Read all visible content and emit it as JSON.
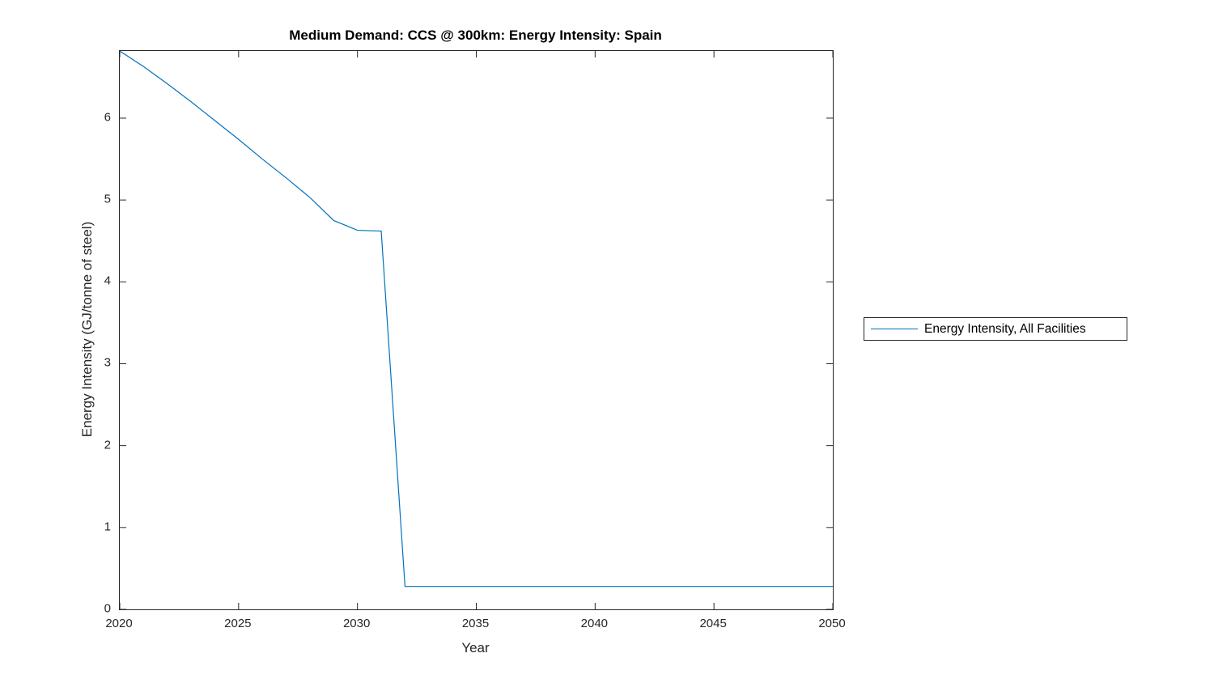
{
  "figure": {
    "title": "Medium Demand: CCS @ 300km: Energy Intensity: Spain",
    "xlabel": "Year",
    "ylabel": "Energy Intensity (GJ/tonne of steel)"
  },
  "legend": {
    "entries": [
      {
        "label": "Energy Intensity, All Facilities",
        "color": "#0072BD"
      }
    ]
  },
  "colors": {
    "line": "#0072BD",
    "axis": "#262626",
    "tick_text": "#262626",
    "title_text": "#000000",
    "background": "#ffffff"
  },
  "chart_data": {
    "type": "line",
    "title": "Medium Demand: CCS @ 300km: Energy Intensity: Spain",
    "xlabel": "Year",
    "ylabel": "Energy Intensity (GJ/tonne of steel)",
    "x": [
      2020,
      2021,
      2022,
      2023,
      2024,
      2025,
      2026,
      2027,
      2028,
      2029,
      2030,
      2031,
      2032,
      2033,
      2034,
      2035,
      2036,
      2037,
      2038,
      2039,
      2040,
      2041,
      2042,
      2043,
      2044,
      2045,
      2046,
      2047,
      2048,
      2049,
      2050
    ],
    "series": [
      {
        "name": "Energy Intensity, All Facilities",
        "color": "#0072BD",
        "values": [
          6.82,
          6.63,
          6.42,
          6.2,
          5.97,
          5.74,
          5.5,
          5.27,
          5.03,
          4.75,
          4.63,
          4.62,
          0.28,
          0.28,
          0.28,
          0.28,
          0.28,
          0.28,
          0.28,
          0.28,
          0.28,
          0.28,
          0.28,
          0.28,
          0.28,
          0.28,
          0.28,
          0.28,
          0.28,
          0.28,
          0.28
        ]
      }
    ],
    "xlim": [
      2020,
      2050
    ],
    "ylim": [
      0,
      6.82
    ],
    "xticks": [
      2020,
      2025,
      2030,
      2035,
      2040,
      2045,
      2050
    ],
    "xtick_labels": [
      "2020",
      "2025",
      "2030",
      "2035",
      "2040",
      "2045",
      "2050"
    ],
    "yticks": [
      0,
      1,
      2,
      3,
      4,
      5,
      6
    ],
    "ytick_labels": [
      "0",
      "1",
      "2",
      "3",
      "4",
      "5",
      "6"
    ],
    "grid": false,
    "legend_position": "right-outside",
    "tick_direction": "in"
  }
}
